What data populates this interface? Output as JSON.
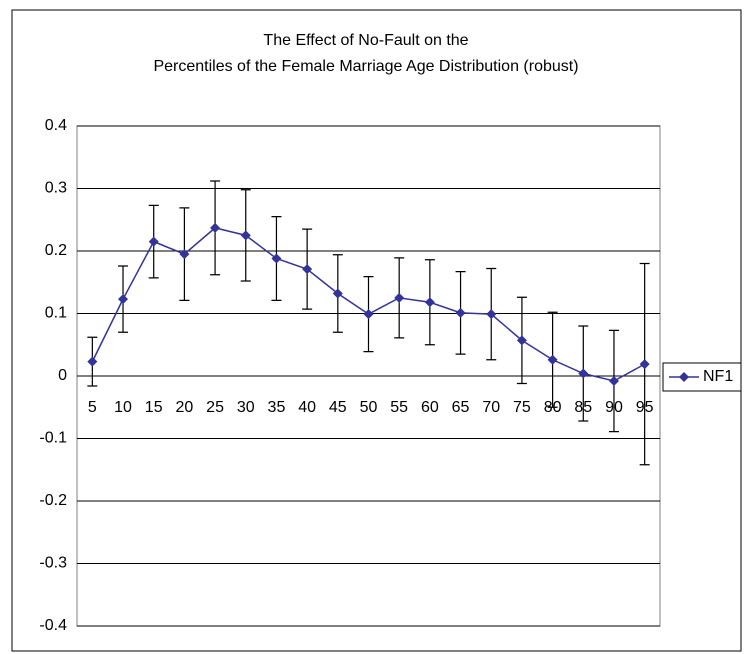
{
  "chart_data": {
    "type": "line",
    "title": [
      "The Effect of No-Fault on the",
      "Percentiles of the Female Marriage Age Distribution (robust)"
    ],
    "categories": [
      "5",
      "10",
      "15",
      "20",
      "25",
      "30",
      "35",
      "40",
      "45",
      "50",
      "55",
      "60",
      "65",
      "70",
      "75",
      "80",
      "85",
      "90",
      "95"
    ],
    "series": [
      {
        "name": "NF1",
        "color": "#333399",
        "values": [
          0.023,
          0.123,
          0.215,
          0.195,
          0.237,
          0.225,
          0.188,
          0.171,
          0.132,
          0.099,
          0.125,
          0.118,
          0.101,
          0.099,
          0.057,
          0.026,
          0.004,
          -0.008,
          0.019
        ],
        "errors": [
          0.039,
          0.053,
          0.058,
          0.074,
          0.075,
          0.073,
          0.067,
          0.064,
          0.062,
          0.06,
          0.064,
          0.068,
          0.066,
          0.073,
          0.069,
          0.076,
          0.076,
          0.081,
          0.161
        ]
      }
    ],
    "ylim": [
      -0.4,
      0.4
    ],
    "yticks": [
      -0.4,
      -0.3,
      -0.2,
      -0.1,
      0,
      0.1,
      0.2,
      0.3,
      0.4
    ],
    "grid": true,
    "legend": "right"
  }
}
